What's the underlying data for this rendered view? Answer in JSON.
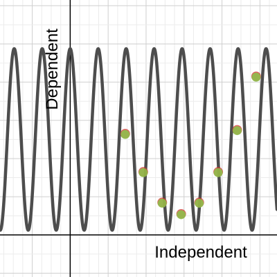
{
  "chart_data": {
    "type": "scatter",
    "xlabel": "Independent",
    "ylabel": "Dependent",
    "xlim": [
      -3.7,
      10.9
    ],
    "ylim": [
      -2.2,
      12.3
    ],
    "grid": true,
    "curve": {
      "type": "line",
      "equation_form": "y = 5 + 4.75*cos(4.26*x)",
      "color": "#4d4d4d"
    },
    "series": [
      {
        "color_outer": "#d32f2f",
        "color_inner": "#8bc34a",
        "x": [
          2.9,
          3.85,
          4.85,
          5.85,
          6.8,
          7.8,
          8.8,
          9.8
        ],
        "y": [
          5.3,
          3.3,
          1.7,
          1.1,
          1.7,
          3.3,
          5.5,
          8.3
        ]
      }
    ],
    "colors": {
      "grid_minor": "#ececec",
      "grid_major": "#cfcfcf",
      "axis": "#000000"
    }
  }
}
